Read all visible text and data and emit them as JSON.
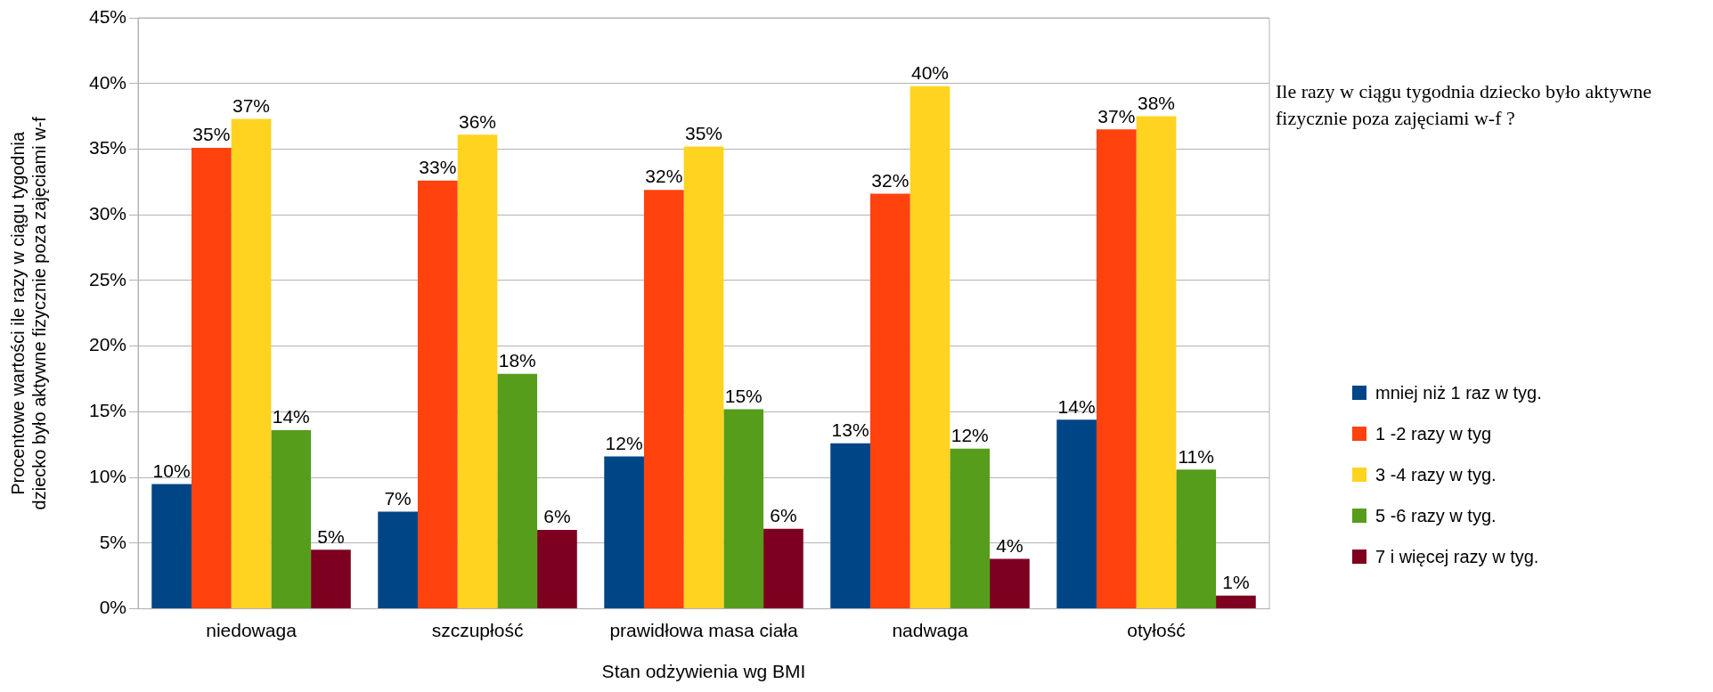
{
  "chart_data": {
    "type": "bar",
    "title": "Ile razy w ciągu tygodnia dziecko było aktywne fizycznie poza zajęciami w-f ?",
    "xlabel": "Stan odżywienia wg BMI",
    "ylabel": "Procentowe wartości ile razy w ciągu tygodnia\ndziecko było aktywne fizycznie poza zajęciami w-f",
    "categories": [
      "niedowaga",
      "szczupłość",
      "prawidłowa masa ciała",
      "nadwaga",
      "otyłość"
    ],
    "series": [
      {
        "name": "mniej niż 1 raz w tyg.",
        "color": "#004586",
        "values": [
          9.5,
          7.4,
          11.6,
          12.6,
          14.4
        ],
        "value_labels": [
          "10%",
          "7%",
          "12%",
          "13%",
          "14%"
        ]
      },
      {
        "name": "1 -2 razy w  tyg",
        "color": "#ff420e",
        "values": [
          35.1,
          32.6,
          31.9,
          31.6,
          36.5
        ],
        "value_labels": [
          "35%",
          "33%",
          "32%",
          "32%",
          "37%"
        ]
      },
      {
        "name": "3 -4 razy w tyg.",
        "color": "#ffd320",
        "values": [
          37.3,
          36.1,
          35.2,
          39.8,
          37.5
        ],
        "value_labels": [
          "37%",
          "36%",
          "35%",
          "40%",
          "38%"
        ]
      },
      {
        "name": "5 -6 razy w tyg.",
        "color": "#579d1c",
        "values": [
          13.6,
          17.9,
          15.2,
          12.2,
          10.6
        ],
        "value_labels": [
          "14%",
          "18%",
          "15%",
          "12%",
          "11%"
        ]
      },
      {
        "name": "7 i więcej razy w tyg.",
        "color": "#7e0021",
        "values": [
          4.5,
          6.0,
          6.1,
          3.8,
          1.0
        ],
        "value_labels": [
          "5%",
          "6%",
          "6%",
          "4%",
          "1%"
        ]
      }
    ],
    "ylim": [
      0,
      45
    ],
    "yticks": [
      {
        "value": 0,
        "label": "0%"
      },
      {
        "value": 5,
        "label": "5%"
      },
      {
        "value": 10,
        "label": "10%"
      },
      {
        "value": 15,
        "label": "15%"
      },
      {
        "value": 20,
        "label": "20%"
      },
      {
        "value": 25,
        "label": "25%"
      },
      {
        "value": 30,
        "label": "30%"
      },
      {
        "value": 35,
        "label": "35%"
      },
      {
        "value": 40,
        "label": "40%"
      },
      {
        "value": 45,
        "label": "45%"
      }
    ],
    "grid": "y",
    "legend": "right"
  }
}
